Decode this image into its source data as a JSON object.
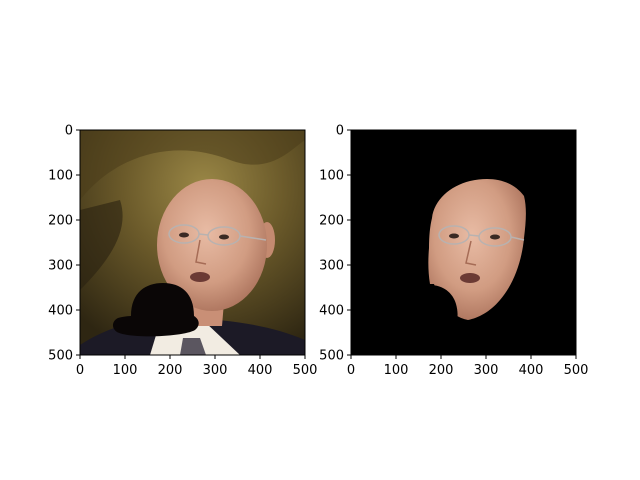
{
  "figure": {
    "background": "#ffffff"
  },
  "chart_data": [
    {
      "type": "image",
      "title": "",
      "xlabel": "",
      "ylabel": "",
      "xlim": [
        0,
        500
      ],
      "ylim": [
        500,
        0
      ],
      "xticks": [
        0,
        100,
        200,
        300,
        400,
        500
      ],
      "yticks": [
        0,
        100,
        200,
        300,
        400,
        500
      ],
      "grid": false,
      "content": "photo-with-black-hat-overlay"
    },
    {
      "type": "image",
      "title": "",
      "xlabel": "",
      "ylabel": "",
      "xlim": [
        0,
        500
      ],
      "ylim": [
        500,
        0
      ],
      "xticks": [
        0,
        100,
        200,
        300,
        400,
        500
      ],
      "yticks": [
        0,
        100,
        200,
        300,
        400,
        500
      ],
      "grid": false,
      "content": "segmented-face-on-black"
    }
  ],
  "colors": {
    "axis": "#000000",
    "hat": "#0a0606",
    "mask_background": "#000000",
    "skin": "#d7a48c",
    "shirt": "#f2ece2",
    "jacket": "#1c1a26",
    "background_dark": "#3b3218",
    "background_gold": "#8c7a3e"
  }
}
